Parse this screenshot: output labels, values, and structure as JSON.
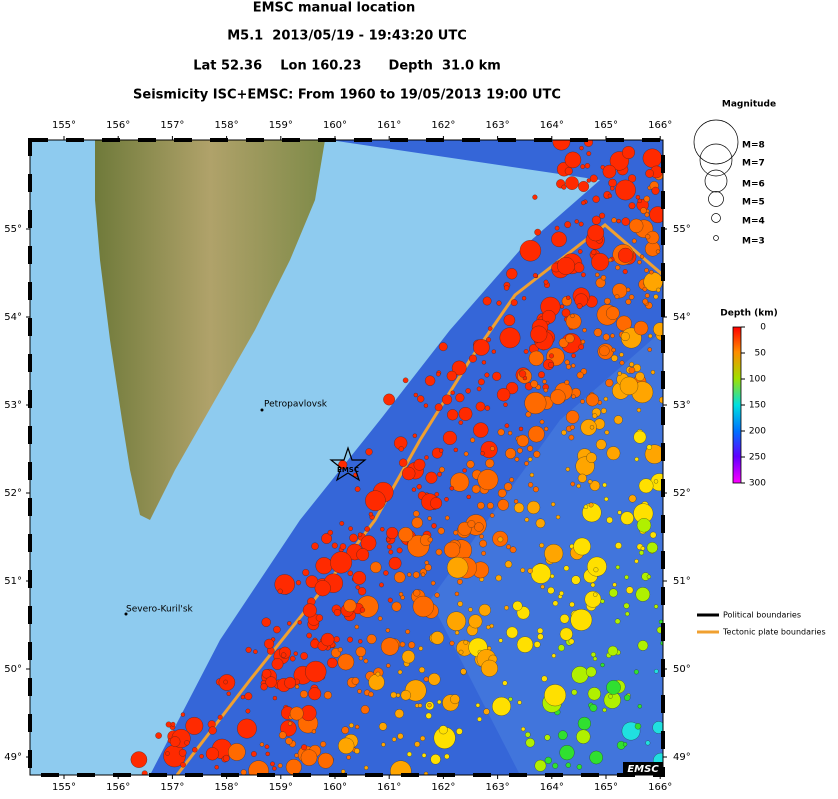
{
  "header": {
    "title": "EMSC manual location",
    "event": "M5.1  2013/05/19 - 19:43:20 UTC",
    "location": "Lat 52.36    Lon 160.23      Depth  31.0 km",
    "seismicity": "Seismicity ISC+EMSC: From 1960 to 19/05/2013 19:00 UTC"
  },
  "map": {
    "lon_ticks": [
      {
        "value": 155,
        "label": "155°"
      },
      {
        "value": 156,
        "label": "156°"
      },
      {
        "value": 157,
        "label": "157°"
      },
      {
        "value": 158,
        "label": "158°"
      },
      {
        "value": 159,
        "label": "159°"
      },
      {
        "value": 160,
        "label": "160°"
      },
      {
        "value": 161,
        "label": "161°"
      },
      {
        "value": 162,
        "label": "162°"
      },
      {
        "value": 163,
        "label": "163°"
      },
      {
        "value": 164,
        "label": "164°"
      },
      {
        "value": 165,
        "label": "165°"
      },
      {
        "value": 166,
        "label": "166°"
      }
    ],
    "lat_ticks": [
      {
        "value": 49,
        "label": "49°"
      },
      {
        "value": 50,
        "label": "50°"
      },
      {
        "value": 51,
        "label": "51°"
      },
      {
        "value": 52,
        "label": "52°"
      },
      {
        "value": 53,
        "label": "53°"
      },
      {
        "value": 54,
        "label": "54°"
      },
      {
        "value": 55,
        "label": "55°"
      }
    ],
    "places": [
      "Petropavlovsk",
      "Severo-Kuril'sk"
    ],
    "epicenter_label": "EMSC",
    "logo": "EMSC"
  },
  "legend": {
    "magnitude": {
      "title": "Magnitude",
      "labels": [
        "M=8",
        "M=7",
        "M=6",
        "M=5",
        "M=4",
        "M=3"
      ]
    },
    "depth": {
      "title": "Depth (km)",
      "ticks": [
        0,
        50,
        100,
        150,
        200,
        250,
        300
      ]
    },
    "boundaries": [
      "Political boundaries",
      "Tectonic plate boundaries"
    ]
  }
}
